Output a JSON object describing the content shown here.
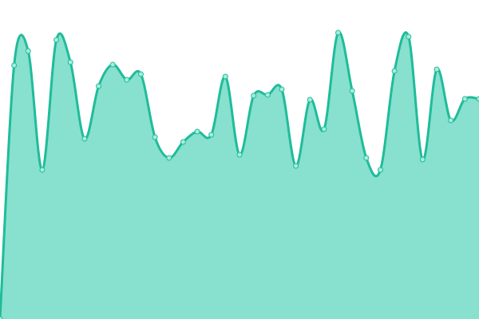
{
  "chart_data": {
    "type": "area",
    "values": [
      0,
      318,
      336,
      187,
      350,
      322,
      226,
      292,
      319,
      300,
      307,
      228,
      202,
      222,
      235,
      231,
      304,
      206,
      280,
      281,
      288,
      192,
      275,
      238,
      359,
      286,
      202,
      187,
      311,
      354,
      200,
      313,
      249,
      276,
      276
    ],
    "ylim": [
      0,
      400
    ],
    "color": "#1fbc9a",
    "fill_color": "#88e0cf",
    "marker_color": "#a8ecdd",
    "markers": true,
    "smooth": true
  }
}
